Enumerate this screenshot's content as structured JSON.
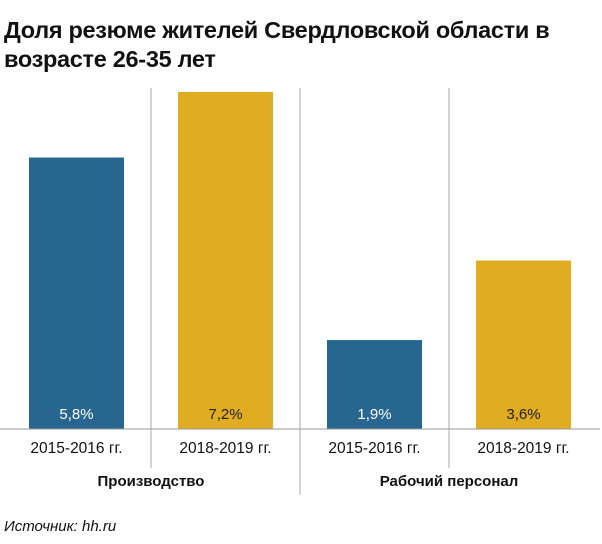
{
  "chart_data": {
    "type": "bar",
    "title": "Доля резюме жителей Свердловской области в возрасте 26-35 лет",
    "groups": [
      {
        "name": "Производство",
        "categories": [
          "2015-2016 гг.",
          "2018-2019 гг."
        ],
        "values": [
          5.8,
          7.2
        ],
        "labels": [
          "5,8%",
          "7,2%"
        ]
      },
      {
        "name": "Рабочий персонал",
        "categories": [
          "2015-2016 гг.",
          "2018-2019 гг."
        ],
        "values": [
          1.9,
          3.6
        ],
        "labels": [
          "1,9%",
          "3,6%"
        ]
      }
    ],
    "colors": [
      "#27668f",
      "#e0ac22"
    ],
    "ylim": [
      0,
      7.2
    ],
    "grid": false
  },
  "source": "Источник: hh.ru"
}
